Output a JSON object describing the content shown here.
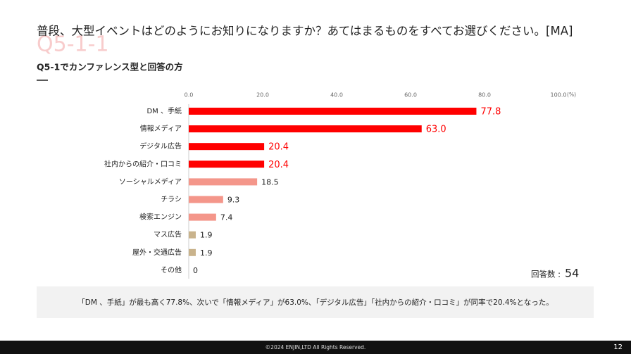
{
  "header": {
    "watermark": "Q5-1-1",
    "title": "普段、大型イベントはどのようにお知りになりますか？あてはまるものをすべてお選びください。[MA]",
    "subtitle": "Q5-1でカンファレンス型と回答の方"
  },
  "chart_data": {
    "type": "hbar",
    "categories": [
      "DM 、手紙",
      "情報メディア",
      "デジタル広告",
      "社内からの紹介・口コミ",
      "ソーシャルメディア",
      "チラシ",
      "検索エンジン",
      "マス広告",
      "屋外・交通広告",
      "その他"
    ],
    "values": [
      77.8,
      63.0,
      20.4,
      20.4,
      18.5,
      9.3,
      7.4,
      1.9,
      1.9,
      0
    ],
    "value_labels": [
      "77.8",
      "63.0",
      "20.4",
      "20.4",
      "18.5",
      "9.3",
      "7.4",
      "1.9",
      "1.9",
      "0"
    ],
    "colors": [
      "#ff0000",
      "#ff0000",
      "#ff0000",
      "#ff0000",
      "#f4968a",
      "#f4968a",
      "#f4968a",
      "#c9b38c",
      "#c9b38c",
      "#c9b38c"
    ],
    "label_colors": [
      "#ff0000",
      "#ff0000",
      "#ff0000",
      "#ff0000",
      "#222222",
      "#222222",
      "#222222",
      "#222222",
      "#222222",
      "#222222"
    ],
    "xlim": [
      0,
      100
    ],
    "xticks": [
      {
        "value": 0,
        "label": "0.0"
      },
      {
        "value": 20,
        "label": "20.0"
      },
      {
        "value": 40,
        "label": "40.0"
      },
      {
        "value": 60,
        "label": "60.0"
      },
      {
        "value": 80,
        "label": "80.0"
      },
      {
        "value": 100,
        "label": "100.0"
      }
    ],
    "unit_label": "(%)",
    "response_count": {
      "label": "回答数 :",
      "value": 54
    }
  },
  "note": "「DM 、手紙」が最も高く77.8%、次いで「情報メディア」が63.0%、「デジタル広告」「社内からの紹介・口コミ」が同率で20.4%となった。",
  "footer": {
    "copyright": "©2024 ENJIN,LTD  All Rights Reserved.",
    "page": "12"
  }
}
